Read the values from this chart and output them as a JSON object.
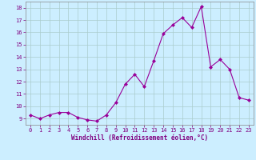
{
  "x": [
    0,
    1,
    2,
    3,
    4,
    5,
    6,
    7,
    8,
    9,
    10,
    11,
    12,
    13,
    14,
    15,
    16,
    17,
    18,
    19,
    20,
    21,
    22,
    23
  ],
  "y": [
    9.3,
    9.0,
    9.3,
    9.5,
    9.5,
    9.1,
    8.9,
    8.8,
    9.3,
    10.3,
    11.8,
    12.6,
    11.6,
    13.7,
    15.9,
    16.6,
    17.2,
    16.4,
    18.1,
    13.2,
    13.8,
    13.0,
    10.7,
    10.5
  ],
  "line_color": "#990099",
  "marker": "D",
  "marker_size": 2,
  "bg_color": "#cceeff",
  "grid_color": "#aacccc",
  "xlabel": "Windchill (Refroidissement éolien,°C)",
  "xlabel_color": "#800080",
  "tick_color": "#800080",
  "ylim": [
    8.5,
    18.5
  ],
  "xlim": [
    -0.5,
    23.5
  ],
  "yticks": [
    9,
    10,
    11,
    12,
    13,
    14,
    15,
    16,
    17,
    18
  ],
  "xticks": [
    0,
    1,
    2,
    3,
    4,
    5,
    6,
    7,
    8,
    9,
    10,
    11,
    12,
    13,
    14,
    15,
    16,
    17,
    18,
    19,
    20,
    21,
    22,
    23
  ]
}
